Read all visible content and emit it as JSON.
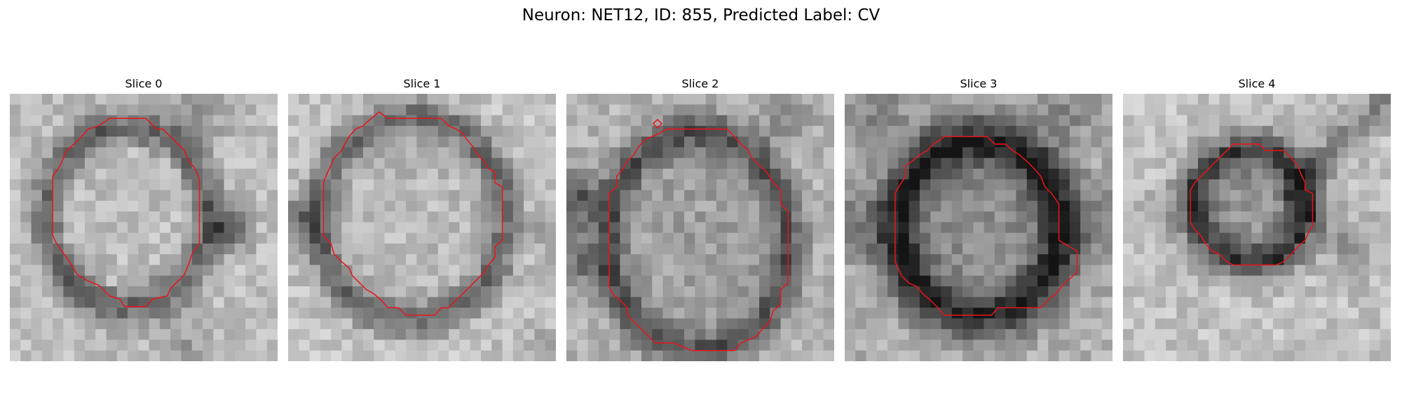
{
  "figure": {
    "title": "Neuron: NET12, ID: 855, Predicted Label: CV",
    "contour_color": "#e8141b",
    "colormap": "grayscale"
  },
  "slices": [
    {
      "label": "Slice 0"
    },
    {
      "label": "Slice 1"
    },
    {
      "label": "Slice 2"
    },
    {
      "label": "Slice 3"
    },
    {
      "label": "Slice 4"
    }
  ]
}
